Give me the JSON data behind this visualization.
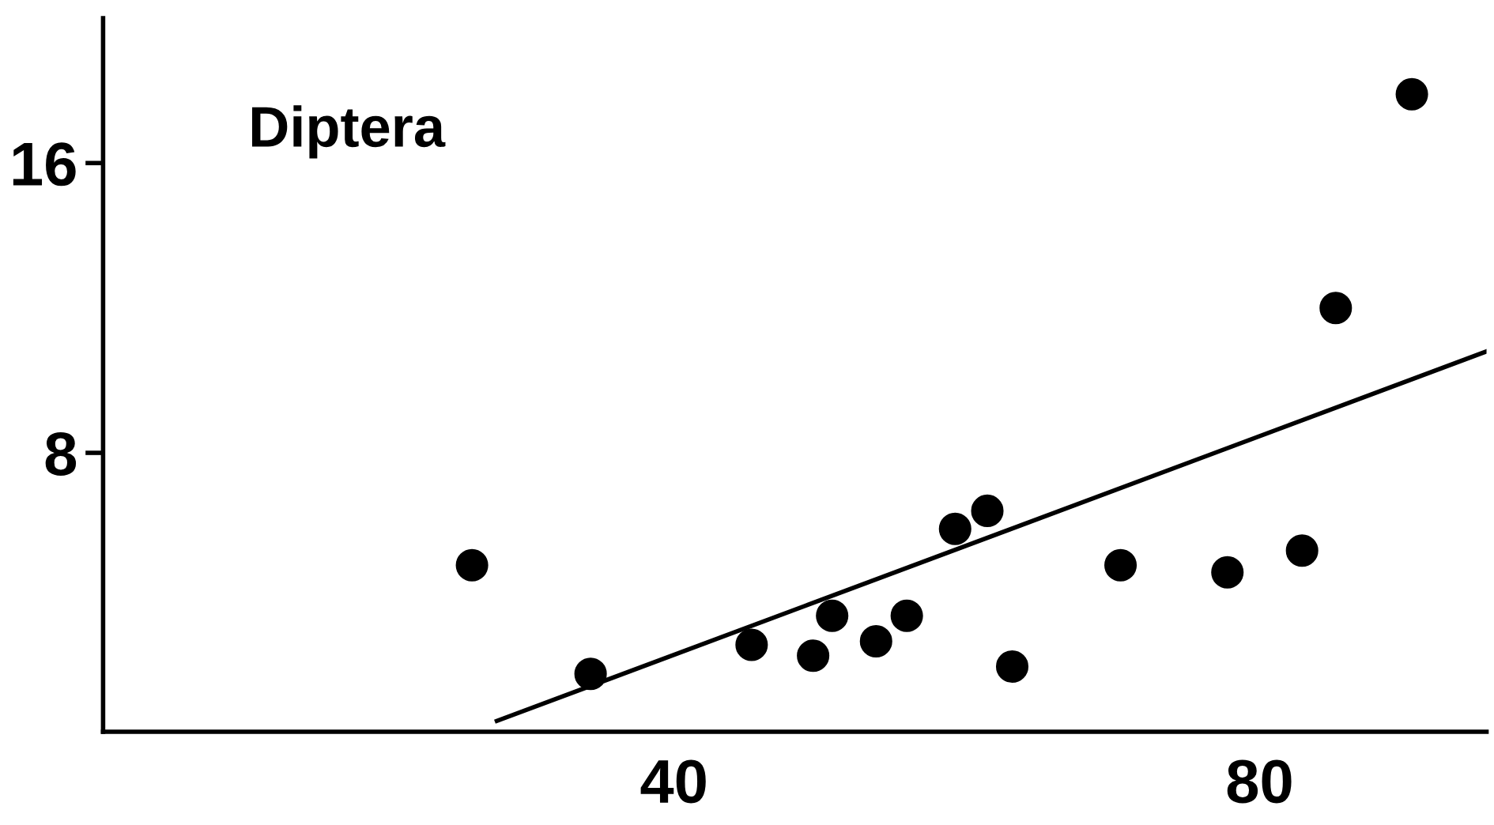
{
  "chart_data": {
    "type": "scatter",
    "annotations": [
      "Diptera"
    ],
    "series": [
      {
        "color": "#000000",
        "marker": "circle",
        "x": [
          26.2,
          34.3,
          45.3,
          49.5,
          50.8,
          53.8,
          55.9,
          59.2,
          61.4,
          63.1,
          70.5,
          77.8,
          82.9,
          85.2,
          90.4
        ],
        "values": [
          4.9,
          1.9,
          2.7,
          2.4,
          3.5,
          2.8,
          3.5,
          5.9,
          6.4,
          2.1,
          4.9,
          4.7,
          5.3,
          12.0,
          17.9
        ]
      },
      {
        "type": "line",
        "color": "#000000",
        "marker": "none",
        "line_style": "solid",
        "x": [
          27.9,
          95.5
        ],
        "values": [
          0.6,
          10.8
        ]
      }
    ],
    "xlim": [
      1,
      95.5
    ],
    "ylim": [
      0.3,
      20
    ],
    "xticks": [
      40,
      80
    ],
    "yticks": [
      8,
      16
    ],
    "grid": false,
    "legend": false
  }
}
